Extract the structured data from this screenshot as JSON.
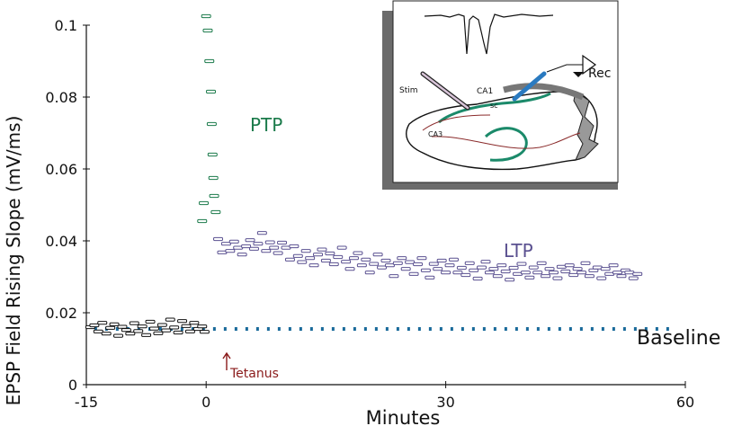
{
  "chart_data": {
    "type": "scatter",
    "ylabel": "EPSP Field Rising Slope (mV/ms)",
    "xlabel": "Minutes",
    "xlim": [
      -15,
      60
    ],
    "ylim": [
      0,
      0.1
    ],
    "x_ticks": [
      "-15",
      "0",
      "30",
      "60"
    ],
    "y_ticks": [
      "0",
      "0.02",
      "0.04",
      "0.06",
      "0.08",
      "0.1"
    ],
    "annotations": {
      "ptp": "PTP",
      "ltp": "LTP",
      "baseline": "Baseline",
      "tetanus": "Tetanus"
    },
    "baseline_value": 0.0155,
    "series": [
      {
        "points": [
          [
            -14.5,
            0.016
          ],
          [
            -14.0,
            0.0165
          ],
          [
            -13.5,
            0.0148
          ],
          [
            -13.0,
            0.0172
          ],
          [
            -12.5,
            0.0142
          ],
          [
            -12.0,
            0.0158
          ],
          [
            -11.5,
            0.0168
          ],
          [
            -11.0,
            0.0136
          ],
          [
            -10.5,
            0.0161
          ],
          [
            -10.0,
            0.0152
          ],
          [
            -9.5,
            0.0142
          ],
          [
            -9.0,
            0.0171
          ],
          [
            -8.5,
            0.0149
          ],
          [
            -8.0,
            0.0162
          ],
          [
            -7.5,
            0.0138
          ],
          [
            -7.0,
            0.0175
          ],
          [
            -6.5,
            0.0156
          ],
          [
            -6.0,
            0.0143
          ],
          [
            -5.5,
            0.0166
          ],
          [
            -5.0,
            0.0151
          ],
          [
            -4.5,
            0.0181
          ],
          [
            -4.0,
            0.0159
          ],
          [
            -3.5,
            0.0145
          ],
          [
            -3.0,
            0.0177
          ],
          [
            -2.5,
            0.0163
          ],
          [
            -2.0,
            0.0148
          ],
          [
            -1.5,
            0.0172
          ],
          [
            -1.0,
            0.0155
          ],
          [
            -0.5,
            0.0162
          ],
          [
            -0.2,
            0.0147
          ]
        ]
      },
      {
        "points": [
          [
            -0.5,
            0.0455
          ],
          [
            -0.3,
            0.0505
          ],
          [
            0.0,
            0.1025
          ],
          [
            0.2,
            0.0985
          ],
          [
            0.4,
            0.09
          ],
          [
            0.6,
            0.0815
          ],
          [
            0.7,
            0.0725
          ],
          [
            0.8,
            0.064
          ],
          [
            0.9,
            0.0575
          ],
          [
            1.0,
            0.0525
          ],
          [
            1.2,
            0.048
          ]
        ]
      },
      {
        "points": [
          [
            1.5,
            0.0405
          ],
          [
            2.0,
            0.0368
          ],
          [
            2.5,
            0.0392
          ],
          [
            3.0,
            0.0372
          ],
          [
            3.5,
            0.0398
          ],
          [
            4.0,
            0.0381
          ],
          [
            4.5,
            0.0362
          ],
          [
            5.0,
            0.0385
          ],
          [
            5.5,
            0.0402
          ],
          [
            6.0,
            0.0378
          ],
          [
            6.5,
            0.0392
          ],
          [
            7.0,
            0.0422
          ],
          [
            7.5,
            0.0372
          ],
          [
            8.0,
            0.0396
          ],
          [
            8.5,
            0.0381
          ],
          [
            9.0,
            0.0366
          ],
          [
            9.5,
            0.0395
          ],
          [
            10.0,
            0.0381
          ],
          [
            10.5,
            0.0348
          ],
          [
            11.0,
            0.0385
          ],
          [
            11.5,
            0.0358
          ],
          [
            12.0,
            0.0341
          ],
          [
            12.5,
            0.0372
          ],
          [
            13.0,
            0.0352
          ],
          [
            13.5,
            0.0332
          ],
          [
            14.0,
            0.0362
          ],
          [
            14.5,
            0.0376
          ],
          [
            15.0,
            0.0345
          ],
          [
            15.5,
            0.0365
          ],
          [
            16.0,
            0.0335
          ],
          [
            16.5,
            0.0355
          ],
          [
            17.0,
            0.0381
          ],
          [
            17.5,
            0.0342
          ],
          [
            18.0,
            0.0322
          ],
          [
            18.5,
            0.0352
          ],
          [
            19.0,
            0.0366
          ],
          [
            19.5,
            0.0332
          ],
          [
            20.0,
            0.0348
          ],
          [
            20.5,
            0.0312
          ],
          [
            21.0,
            0.0336
          ],
          [
            21.5,
            0.0362
          ],
          [
            22.0,
            0.0326
          ],
          [
            22.5,
            0.0345
          ],
          [
            23.0,
            0.0332
          ],
          [
            23.5,
            0.0302
          ],
          [
            24.0,
            0.0338
          ],
          [
            24.5,
            0.0352
          ],
          [
            25.0,
            0.0322
          ],
          [
            25.5,
            0.0341
          ],
          [
            26.0,
            0.0308
          ],
          [
            26.5,
            0.0335
          ],
          [
            27.0,
            0.0352
          ],
          [
            27.5,
            0.0318
          ],
          [
            28.0,
            0.0298
          ],
          [
            28.5,
            0.0336
          ],
          [
            29.0,
            0.0322
          ],
          [
            29.5,
            0.0345
          ],
          [
            30.0,
            0.0312
          ],
          [
            30.5,
            0.0332
          ],
          [
            31.0,
            0.0348
          ],
          [
            31.5,
            0.0312
          ],
          [
            32.0,
            0.0325
          ],
          [
            32.5,
            0.0305
          ],
          [
            33.0,
            0.0338
          ],
          [
            33.5,
            0.0318
          ],
          [
            34.0,
            0.0295
          ],
          [
            34.5,
            0.0326
          ],
          [
            35.0,
            0.0342
          ],
          [
            35.5,
            0.0312
          ],
          [
            36.0,
            0.0322
          ],
          [
            36.5,
            0.0302
          ],
          [
            37.0,
            0.0332
          ],
          [
            37.5,
            0.0315
          ],
          [
            38.0,
            0.0292
          ],
          [
            38.5,
            0.0325
          ],
          [
            39.0,
            0.0308
          ],
          [
            39.5,
            0.0336
          ],
          [
            40.0,
            0.0312
          ],
          [
            40.5,
            0.0298
          ],
          [
            41.0,
            0.0326
          ],
          [
            41.5,
            0.0312
          ],
          [
            42.0,
            0.0338
          ],
          [
            42.5,
            0.0302
          ],
          [
            43.0,
            0.0322
          ],
          [
            43.5,
            0.0312
          ],
          [
            44.0,
            0.0296
          ],
          [
            44.5,
            0.0328
          ],
          [
            45.0,
            0.0315
          ],
          [
            45.5,
            0.0332
          ],
          [
            46.0,
            0.0305
          ],
          [
            46.5,
            0.0322
          ],
          [
            47.0,
            0.0312
          ],
          [
            47.5,
            0.0338
          ],
          [
            48.0,
            0.0302
          ],
          [
            48.5,
            0.0318
          ],
          [
            49.0,
            0.0326
          ],
          [
            49.5,
            0.0296
          ],
          [
            50.0,
            0.0322
          ],
          [
            50.5,
            0.0308
          ],
          [
            51.0,
            0.0332
          ],
          [
            51.5,
            0.0312
          ],
          [
            52.0,
            0.0302
          ],
          [
            52.5,
            0.0318
          ],
          [
            53.0,
            0.0312
          ],
          [
            53.5,
            0.0296
          ],
          [
            54.0,
            0.0308
          ]
        ]
      }
    ]
  },
  "inset": {
    "labels": {
      "stim": "Stim",
      "ca1": "CA1",
      "sc": "sc",
      "ca3": "CA3",
      "rec": "Rec"
    }
  },
  "colors": {
    "baseline_points": "#111111",
    "ptp": "#1a7a4a",
    "ltp": "#5a5090",
    "baseline_line": "#1a6a9a",
    "tetanus": "#8a1a1a",
    "axis": "#111111",
    "inset_frame": "#666666",
    "inset_green": "#1b8a6a",
    "inset_red": "#8a2a2a",
    "inset_blue": "#2a7ac0"
  }
}
